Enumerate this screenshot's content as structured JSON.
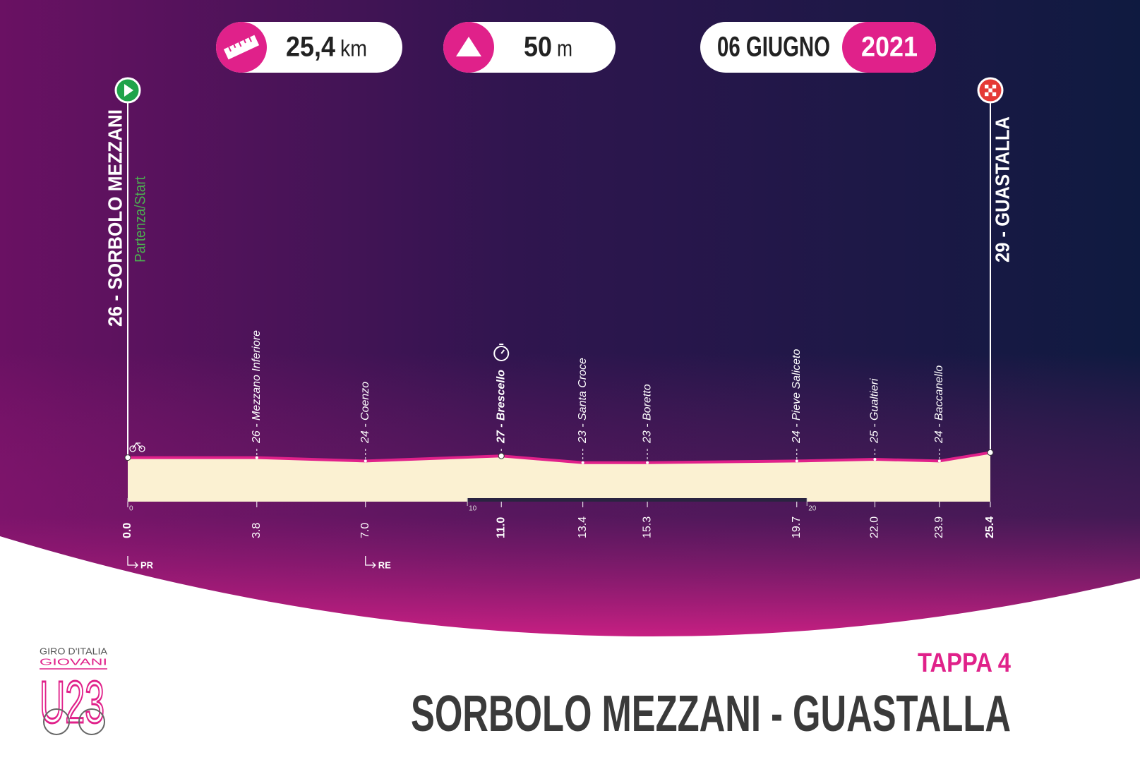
{
  "chart_data": {
    "type": "area",
    "header": {
      "distance": "25,4",
      "distance_unit": "km",
      "climb": "50",
      "climb_unit": "m",
      "date": "06 GIUGNO",
      "year": "2021"
    },
    "start_subtitle": "Partenza/Start",
    "x": [
      {
        "value": 0,
        "label": "0.0"
      },
      3.8,
      {
        "value": 7,
        "label": "7.0"
      },
      {
        "value": 11,
        "label": "11.0"
      },
      13.4,
      15.3,
      19.7,
      {
        "value": 22,
        "label": "22.0"
      },
      23.9,
      25.4
    ],
    "values": [
      26,
      26,
      24,
      27,
      23,
      23,
      24,
      25,
      24,
      29
    ],
    "labels": [
      "26 - SORBOLO MEZZANI",
      "26 - Mezzano Inferiore",
      "24 - Coenzo",
      "27 - Brescello",
      "23 - Santa Croce",
      "23 - Boretto",
      "24 - Pieve Saliceto",
      "25 - Gualtieri",
      "24 - Baccanello",
      "29 - GUASTALLA"
    ],
    "time_check_x": 11,
    "provinces": [
      {
        "x": 0,
        "label": "PR"
      },
      {
        "x": 7,
        "label": "RE"
      }
    ],
    "xlim": [
      0,
      25.4
    ],
    "xticks": [
      0,
      10,
      20
    ],
    "ylim": [
      0,
      250
    ],
    "line_color": "#e0218a",
    "fill_color": "#fbf1d2",
    "stage": "TAPPA 4",
    "title": "SORBOLO MEZZANI - GUASTALLA",
    "logo": {
      "line1": "GIRO D'ITALIA",
      "line2": "GIOVANI",
      "line3": "U23"
    }
  }
}
